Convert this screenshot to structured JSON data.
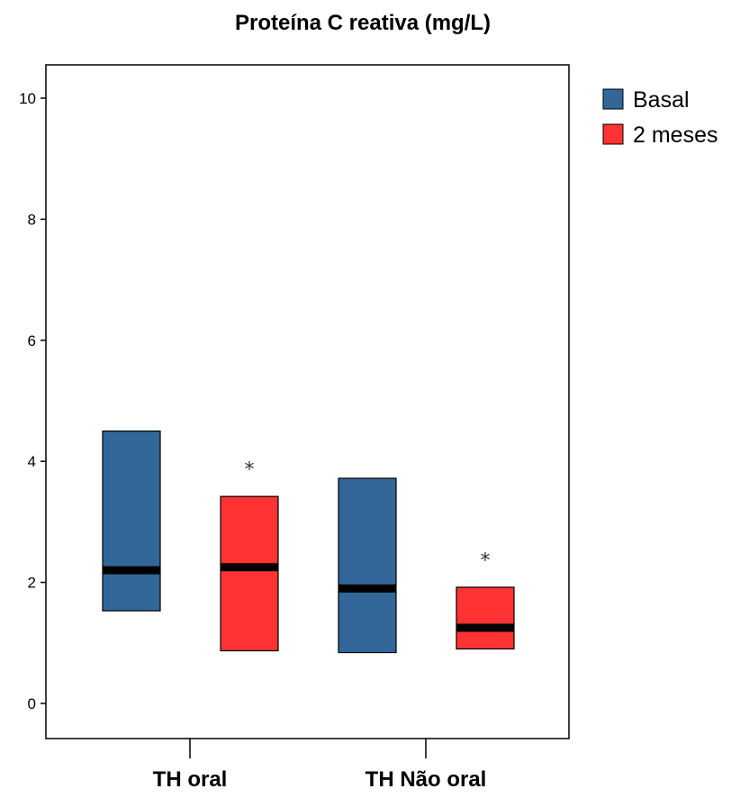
{
  "chart_data": {
    "type": "box",
    "title": "Proteína C reativa (mg/L)",
    "xlabel": "",
    "ylabel": "",
    "ylim": [
      -0.6,
      10.6
    ],
    "yticks": [
      0,
      2,
      4,
      6,
      8,
      10
    ],
    "categories": [
      "TH oral",
      "TH Não oral"
    ],
    "grid": false,
    "legend_position": "right",
    "series": [
      {
        "name": "Basal",
        "color": "#336699",
        "boxes": [
          {
            "category": "TH oral",
            "q1": 1.53,
            "median": 2.2,
            "q3": 4.5
          },
          {
            "category": "TH Não oral",
            "q1": 0.84,
            "median": 1.9,
            "q3": 3.72
          }
        ]
      },
      {
        "name": "2 meses",
        "color": "#FF3333",
        "boxes": [
          {
            "category": "TH oral",
            "q1": 0.87,
            "median": 2.25,
            "q3": 3.42
          },
          {
            "category": "TH Não oral",
            "q1": 0.9,
            "median": 1.25,
            "q3": 1.92
          }
        ]
      }
    ],
    "outliers": [
      {
        "category": "TH oral",
        "series": "2 meses",
        "value": 3.98,
        "marker": "*"
      },
      {
        "category": "TH Não oral",
        "series": "2 meses",
        "value": 2.48,
        "marker": "*"
      }
    ]
  }
}
